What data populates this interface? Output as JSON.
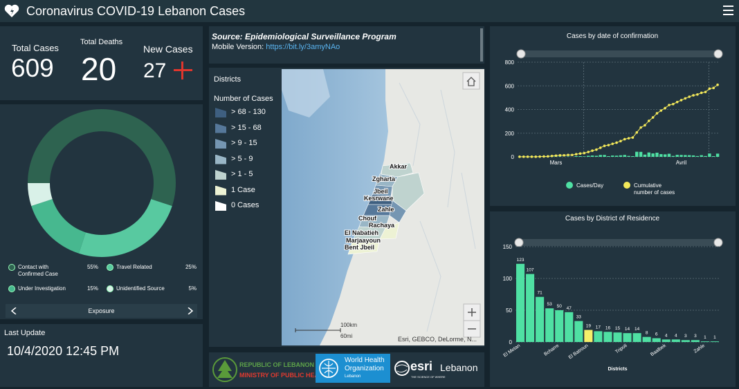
{
  "header": {
    "title": "Coronavirus COVID-19 Lebanon Cases"
  },
  "stats": [
    {
      "label": "Total Cases",
      "value": 609
    },
    {
      "label": "Total Deaths",
      "value": 20
    },
    {
      "label": "New Cases",
      "value": 27
    }
  ],
  "source": {
    "title": "Source: Epidemiological Surveillance Program",
    "mobile_label": "Mobile Version:",
    "link": "https://bit.ly/3amyNAo"
  },
  "last_update": {
    "label": "Last Update",
    "value": "10/4/2020 12:45 PM"
  },
  "map": {
    "title": "Districts",
    "legend_title": "Number of Cases",
    "classes": [
      {
        "label": "> 68 - 130",
        "color": "#3e5f80"
      },
      {
        "label": "> 15 - 68",
        "color": "#56789a"
      },
      {
        "label": "> 9 - 15",
        "color": "#7596b2"
      },
      {
        "label": "> 5 - 9",
        "color": "#99b6c6"
      },
      {
        "label": "> 1 - 5",
        "color": "#bfd3cf"
      },
      {
        "label": "1 Case",
        "color": "#edf2d4"
      },
      {
        "label": "0 Cases",
        "color": "#ffffff"
      }
    ],
    "labels": [
      "Akkar",
      "Zgharta",
      "Jbeil",
      "Kesrwane",
      "Zahle",
      "Chouf",
      "Rachaya",
      "El Nabatieh",
      "Marjaayoun",
      "Bent Jbeil"
    ],
    "scale_km": "100km",
    "scale_mi": "60mi",
    "attribution": "Esri, GEBCO, DeLorme, N..."
  },
  "logos": {
    "moph_line1": "REPUBLIC OF LEBANON",
    "moph_line2": "MINISTRY OF PUBLIC HEALTH",
    "who_line1": "World Health",
    "who_line2": "Organization",
    "who_line3": "Lebanon",
    "esri_name": "esri",
    "esri_country": "Lebanon",
    "esri_tagline": "THE SCIENCE OF WHERE"
  },
  "chart_data": [
    {
      "type": "pie",
      "donut": true,
      "categories": [
        "Contact with Confirmed Case",
        "Travel Related",
        "Under Investigation",
        "Unidentified Source"
      ],
      "values": [
        55,
        25,
        15,
        5
      ],
      "value_labels": [
        "55%",
        "25%",
        "15%",
        "5%"
      ],
      "colors": [
        "#2e6350",
        "#58c9a0",
        "#47b88f",
        "#d9f1e8"
      ],
      "footer": "Exposure"
    },
    {
      "type": "combo",
      "title": "Cases by  date of confirmation",
      "categories": [
        null,
        null,
        null,
        null,
        null,
        null,
        null,
        null,
        null,
        "Mars",
        null,
        null,
        null,
        null,
        null,
        null,
        null,
        null,
        null,
        null,
        null,
        null,
        null,
        null,
        null,
        null,
        null,
        null,
        null,
        null,
        null,
        null,
        null,
        null,
        null,
        null,
        null,
        null,
        null,
        null,
        "Avril",
        null,
        null,
        null,
        null,
        null,
        null,
        null,
        null,
        null
      ],
      "series": [
        {
          "name": "Cases/Day",
          "type": "bar",
          "color": "#4fe0a3",
          "values": [
            1,
            0,
            0,
            0,
            0,
            1,
            1,
            1,
            3,
            3,
            3,
            0,
            3,
            0,
            6,
            6,
            4,
            9,
            11,
            9,
            16,
            16,
            6,
            11,
            10,
            13,
            16,
            8,
            6,
            43,
            42,
            19,
            37,
            29,
            35,
            23,
            21,
            26,
            8,
            17,
            16,
            15,
            14,
            12,
            7,
            14,
            7,
            28,
            6,
            27
          ]
        },
        {
          "name": "Cumulative number of cases",
          "type": "line",
          "color": "#f3e85a",
          "values": [
            1,
            1,
            1,
            1,
            1,
            2,
            3,
            4,
            7,
            10,
            13,
            13,
            16,
            16,
            22,
            28,
            32,
            41,
            52,
            61,
            77,
            93,
            99,
            110,
            120,
            133,
            149,
            157,
            163,
            206,
            248,
            267,
            304,
            333,
            368,
            391,
            412,
            438,
            446,
            463,
            479,
            494,
            508,
            520,
            527,
            541,
            548,
            576,
            582,
            609
          ]
        }
      ],
      "ylim": [
        0,
        800
      ],
      "yticks": [
        0,
        200,
        400,
        600,
        800
      ],
      "grid": true
    },
    {
      "type": "bar",
      "title": "Cases by District of Residence",
      "xlabel": "Districts",
      "categories": [
        "El Metan",
        null,
        null,
        null,
        "Bcharre",
        null,
        null,
        "El Batroun",
        null,
        null,
        null,
        "Tripoli",
        null,
        null,
        null,
        "Baalbek",
        null,
        null,
        null,
        "Zahle",
        null
      ],
      "values": [
        123,
        107,
        71,
        53,
        50,
        47,
        33,
        19,
        17,
        16,
        15,
        14,
        14,
        8,
        6,
        4,
        4,
        3,
        3,
        1,
        1
      ],
      "colors": [
        "#4fe0a3",
        "#4fe0a3",
        "#4fe0a3",
        "#4fe0a3",
        "#4fe0a3",
        "#4fe0a3",
        "#4fe0a3",
        "#f5ef6a",
        "#4fe0a3",
        "#4fe0a3",
        "#4fe0a3",
        "#4fe0a3",
        "#4fe0a3",
        "#4fe0a3",
        "#4fe0a3",
        "#4fe0a3",
        "#4fe0a3",
        "#4fe0a3",
        "#4fe0a3",
        "#4fe0a3",
        "#4fe0a3"
      ],
      "ylim": [
        0,
        150
      ],
      "yticks": [
        0,
        50,
        100,
        150
      ],
      "grid": true,
      "show_value_labels": true
    }
  ]
}
